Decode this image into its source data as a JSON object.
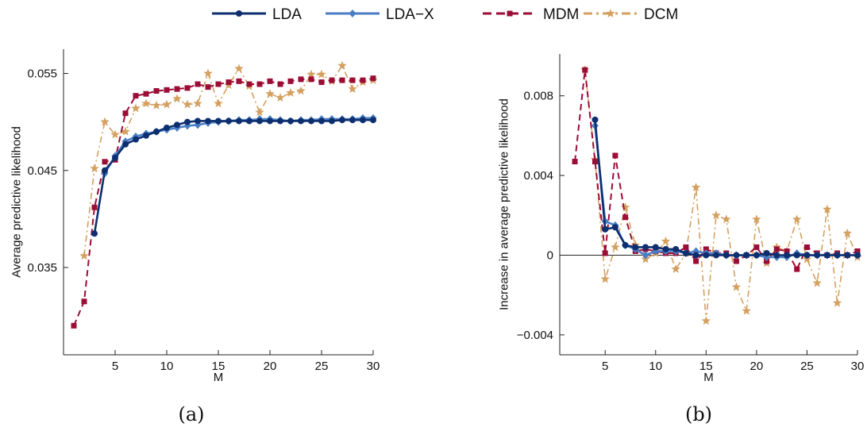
{
  "legend": [
    {
      "name": "LDA",
      "color": "#0d2f6f",
      "marker": "circle",
      "dash": "solid"
    },
    {
      "name": "LDA−X",
      "color": "#4a7ec4",
      "marker": "diamond",
      "dash": "solid"
    },
    {
      "name": "MDM",
      "color": "#9c0d36",
      "marker": "square",
      "dash": "dashed"
    },
    {
      "name": "DCM",
      "color": "#d4a060",
      "marker": "star",
      "dash": "dashdot"
    }
  ],
  "chart_data": [
    {
      "type": "line",
      "caption": "(a)",
      "xlabel": "M",
      "ylabel": "Average predictive likelihood",
      "xlim": [
        0,
        30
      ],
      "ylim": [
        0.026,
        0.0575
      ],
      "xticks": [
        5,
        10,
        15,
        20,
        25,
        30
      ],
      "yticks": [
        0.035,
        0.045,
        0.055
      ],
      "ytick_labels": [
        "0.035",
        "0.045",
        "0.055"
      ],
      "grid": false,
      "series": [
        {
          "name": "LDA",
          "x": [
            3,
            4,
            5,
            6,
            7,
            8,
            9,
            10,
            11,
            12,
            13,
            14,
            15,
            16,
            17,
            18,
            19,
            20,
            21,
            22,
            23,
            24,
            25,
            26,
            27,
            28,
            29,
            30
          ],
          "y": [
            0.0385,
            0.045,
            0.0463,
            0.0477,
            0.0482,
            0.0486,
            0.049,
            0.0494,
            0.0497,
            0.05,
            0.0501,
            0.0501,
            0.0501,
            0.0501,
            0.0501,
            0.0501,
            0.0501,
            0.0501,
            0.0501,
            0.0501,
            0.0501,
            0.0501,
            0.0501,
            0.0501,
            0.0502,
            0.0502,
            0.0502,
            0.0502
          ]
        },
        {
          "name": "LDA−X",
          "x": [
            4,
            5,
            6,
            7,
            8,
            9,
            10,
            11,
            12,
            13,
            14,
            15,
            16,
            17,
            18,
            19,
            20,
            21,
            22,
            23,
            24,
            25,
            26,
            27,
            28,
            29,
            30
          ],
          "y": [
            0.0447,
            0.0465,
            0.048,
            0.0485,
            0.0488,
            0.049,
            0.0492,
            0.0494,
            0.0496,
            0.0497,
            0.0499,
            0.05,
            0.0501,
            0.0502,
            0.0502,
            0.0503,
            0.0503,
            0.0502,
            0.0501,
            0.0502,
            0.0502,
            0.0503,
            0.0503,
            0.0503,
            0.0503,
            0.0504,
            0.0504
          ]
        },
        {
          "name": "MDM",
          "x": [
            1,
            2,
            3,
            4,
            5,
            6,
            7,
            8,
            9,
            10,
            11,
            12,
            13,
            14,
            15,
            16,
            17,
            18,
            19,
            20,
            21,
            22,
            23,
            24,
            25,
            26,
            27,
            28,
            29,
            30
          ],
          "y": [
            0.029,
            0.0315,
            0.0412,
            0.0459,
            0.0461,
            0.0509,
            0.0527,
            0.0529,
            0.0532,
            0.0533,
            0.0534,
            0.0535,
            0.0539,
            0.0536,
            0.0539,
            0.0541,
            0.0542,
            0.0539,
            0.0539,
            0.0542,
            0.0539,
            0.0542,
            0.0544,
            0.0544,
            0.0541,
            0.0543,
            0.0543,
            0.0543,
            0.0543,
            0.0545
          ]
        },
        {
          "name": "DCM",
          "x": [
            2,
            3,
            4,
            5,
            6,
            7,
            8,
            9,
            10,
            11,
            12,
            13,
            14,
            15,
            16,
            17,
            18,
            19,
            20,
            21,
            22,
            23,
            24,
            25,
            26,
            27,
            28,
            29,
            30
          ],
          "y": [
            0.0362,
            0.0452,
            0.05,
            0.0487,
            0.049,
            0.0514,
            0.0519,
            0.0517,
            0.0518,
            0.0524,
            0.0518,
            0.0519,
            0.055,
            0.0519,
            0.0538,
            0.0555,
            0.0537,
            0.051,
            0.0529,
            0.0525,
            0.053,
            0.0532,
            0.0549,
            0.0549,
            0.0542,
            0.0558,
            0.0534,
            0.0541,
            0.0543
          ]
        }
      ]
    },
    {
      "type": "line",
      "caption": "(b)",
      "xlabel": "M",
      "ylabel": "Increase in average predictive likelihood",
      "xlim": [
        0.5,
        30
      ],
      "ylim": [
        -0.005,
        0.0101
      ],
      "xticks": [
        5,
        10,
        15,
        20,
        25,
        30
      ],
      "yticks": [
        -0.004,
        0,
        0.004,
        0.008
      ],
      "ytick_labels": [
        "−0.004",
        "0",
        "0.004",
        "0.008"
      ],
      "zero_line": true,
      "grid": false,
      "series": [
        {
          "name": "LDA",
          "x": [
            4,
            5,
            6,
            7,
            8,
            9,
            10,
            11,
            12,
            13,
            14,
            15,
            16,
            17,
            18,
            19,
            20,
            21,
            22,
            23,
            24,
            25,
            26,
            27,
            28,
            29,
            30
          ],
          "y": [
            0.0068,
            0.0013,
            0.0014,
            0.0005,
            0.0004,
            0.0004,
            0.0004,
            0.0003,
            0.0003,
            0.0001,
            0.0,
            0.0,
            0.0,
            0.0,
            0.0,
            0.0,
            0.0,
            0.0001,
            0.0,
            0.0,
            0.0,
            0.0,
            0.0,
            0.0,
            0.0,
            0.0,
            0.0
          ]
        },
        {
          "name": "LDA−X",
          "x": [
            4,
            5,
            6,
            7,
            8,
            9,
            10,
            11,
            12,
            13,
            14,
            15,
            16,
            17,
            18,
            19,
            20,
            21,
            22,
            23,
            24,
            25,
            26,
            27,
            28,
            29,
            30
          ],
          "y": [
            0.0065,
            0.0017,
            0.0015,
            0.0005,
            0.0003,
            0.0,
            0.0002,
            0.0002,
            0.0002,
            0.0001,
            0.0002,
            0.0001,
            0.0001,
            0.0,
            0.0,
            0.0,
            0.0,
            -0.0001,
            -0.0001,
            -0.0001,
            0.0001,
            0.0,
            0.0,
            0.0,
            0.0,
            0.0,
            0.0
          ]
        },
        {
          "name": "MDM",
          "x": [
            2,
            3,
            4,
            5,
            6,
            7,
            8,
            9,
            10,
            11,
            12,
            13,
            14,
            15,
            16,
            17,
            18,
            19,
            20,
            21,
            22,
            23,
            24,
            25,
            26,
            27,
            28,
            29,
            30
          ],
          "y": [
            0.0047,
            0.0093,
            0.0047,
            0.0001,
            0.005,
            0.0019,
            0.0002,
            0.0003,
            0.0002,
            0.0001,
            0.0001,
            0.0004,
            -0.0003,
            0.0003,
            0.0001,
            0.0001,
            -0.0003,
            0.0,
            0.0004,
            -0.0003,
            0.0003,
            0.0002,
            -0.0007,
            0.0004,
            0.0001,
            0.0,
            0.0001,
            0.0,
            0.0002
          ]
        },
        {
          "name": "DCM",
          "x": [
            3,
            4,
            5,
            6,
            7,
            8,
            9,
            10,
            11,
            12,
            13,
            14,
            15,
            16,
            17,
            18,
            19,
            20,
            21,
            22,
            23,
            24,
            25,
            26,
            27,
            28,
            29,
            30
          ],
          "y": [
            0.0093,
            0.0048,
            -0.0012,
            0.0004,
            0.0024,
            0.0005,
            -0.0002,
            0.0001,
            0.0007,
            -0.0007,
            0.0001,
            0.0034,
            -0.0033,
            0.002,
            0.0018,
            -0.0016,
            -0.0028,
            0.0018,
            -0.0004,
            0.0004,
            0.0002,
            0.0018,
            -0.0002,
            -0.0014,
            0.0023,
            -0.0024,
            0.0011,
            -0.0001
          ]
        }
      ]
    }
  ]
}
